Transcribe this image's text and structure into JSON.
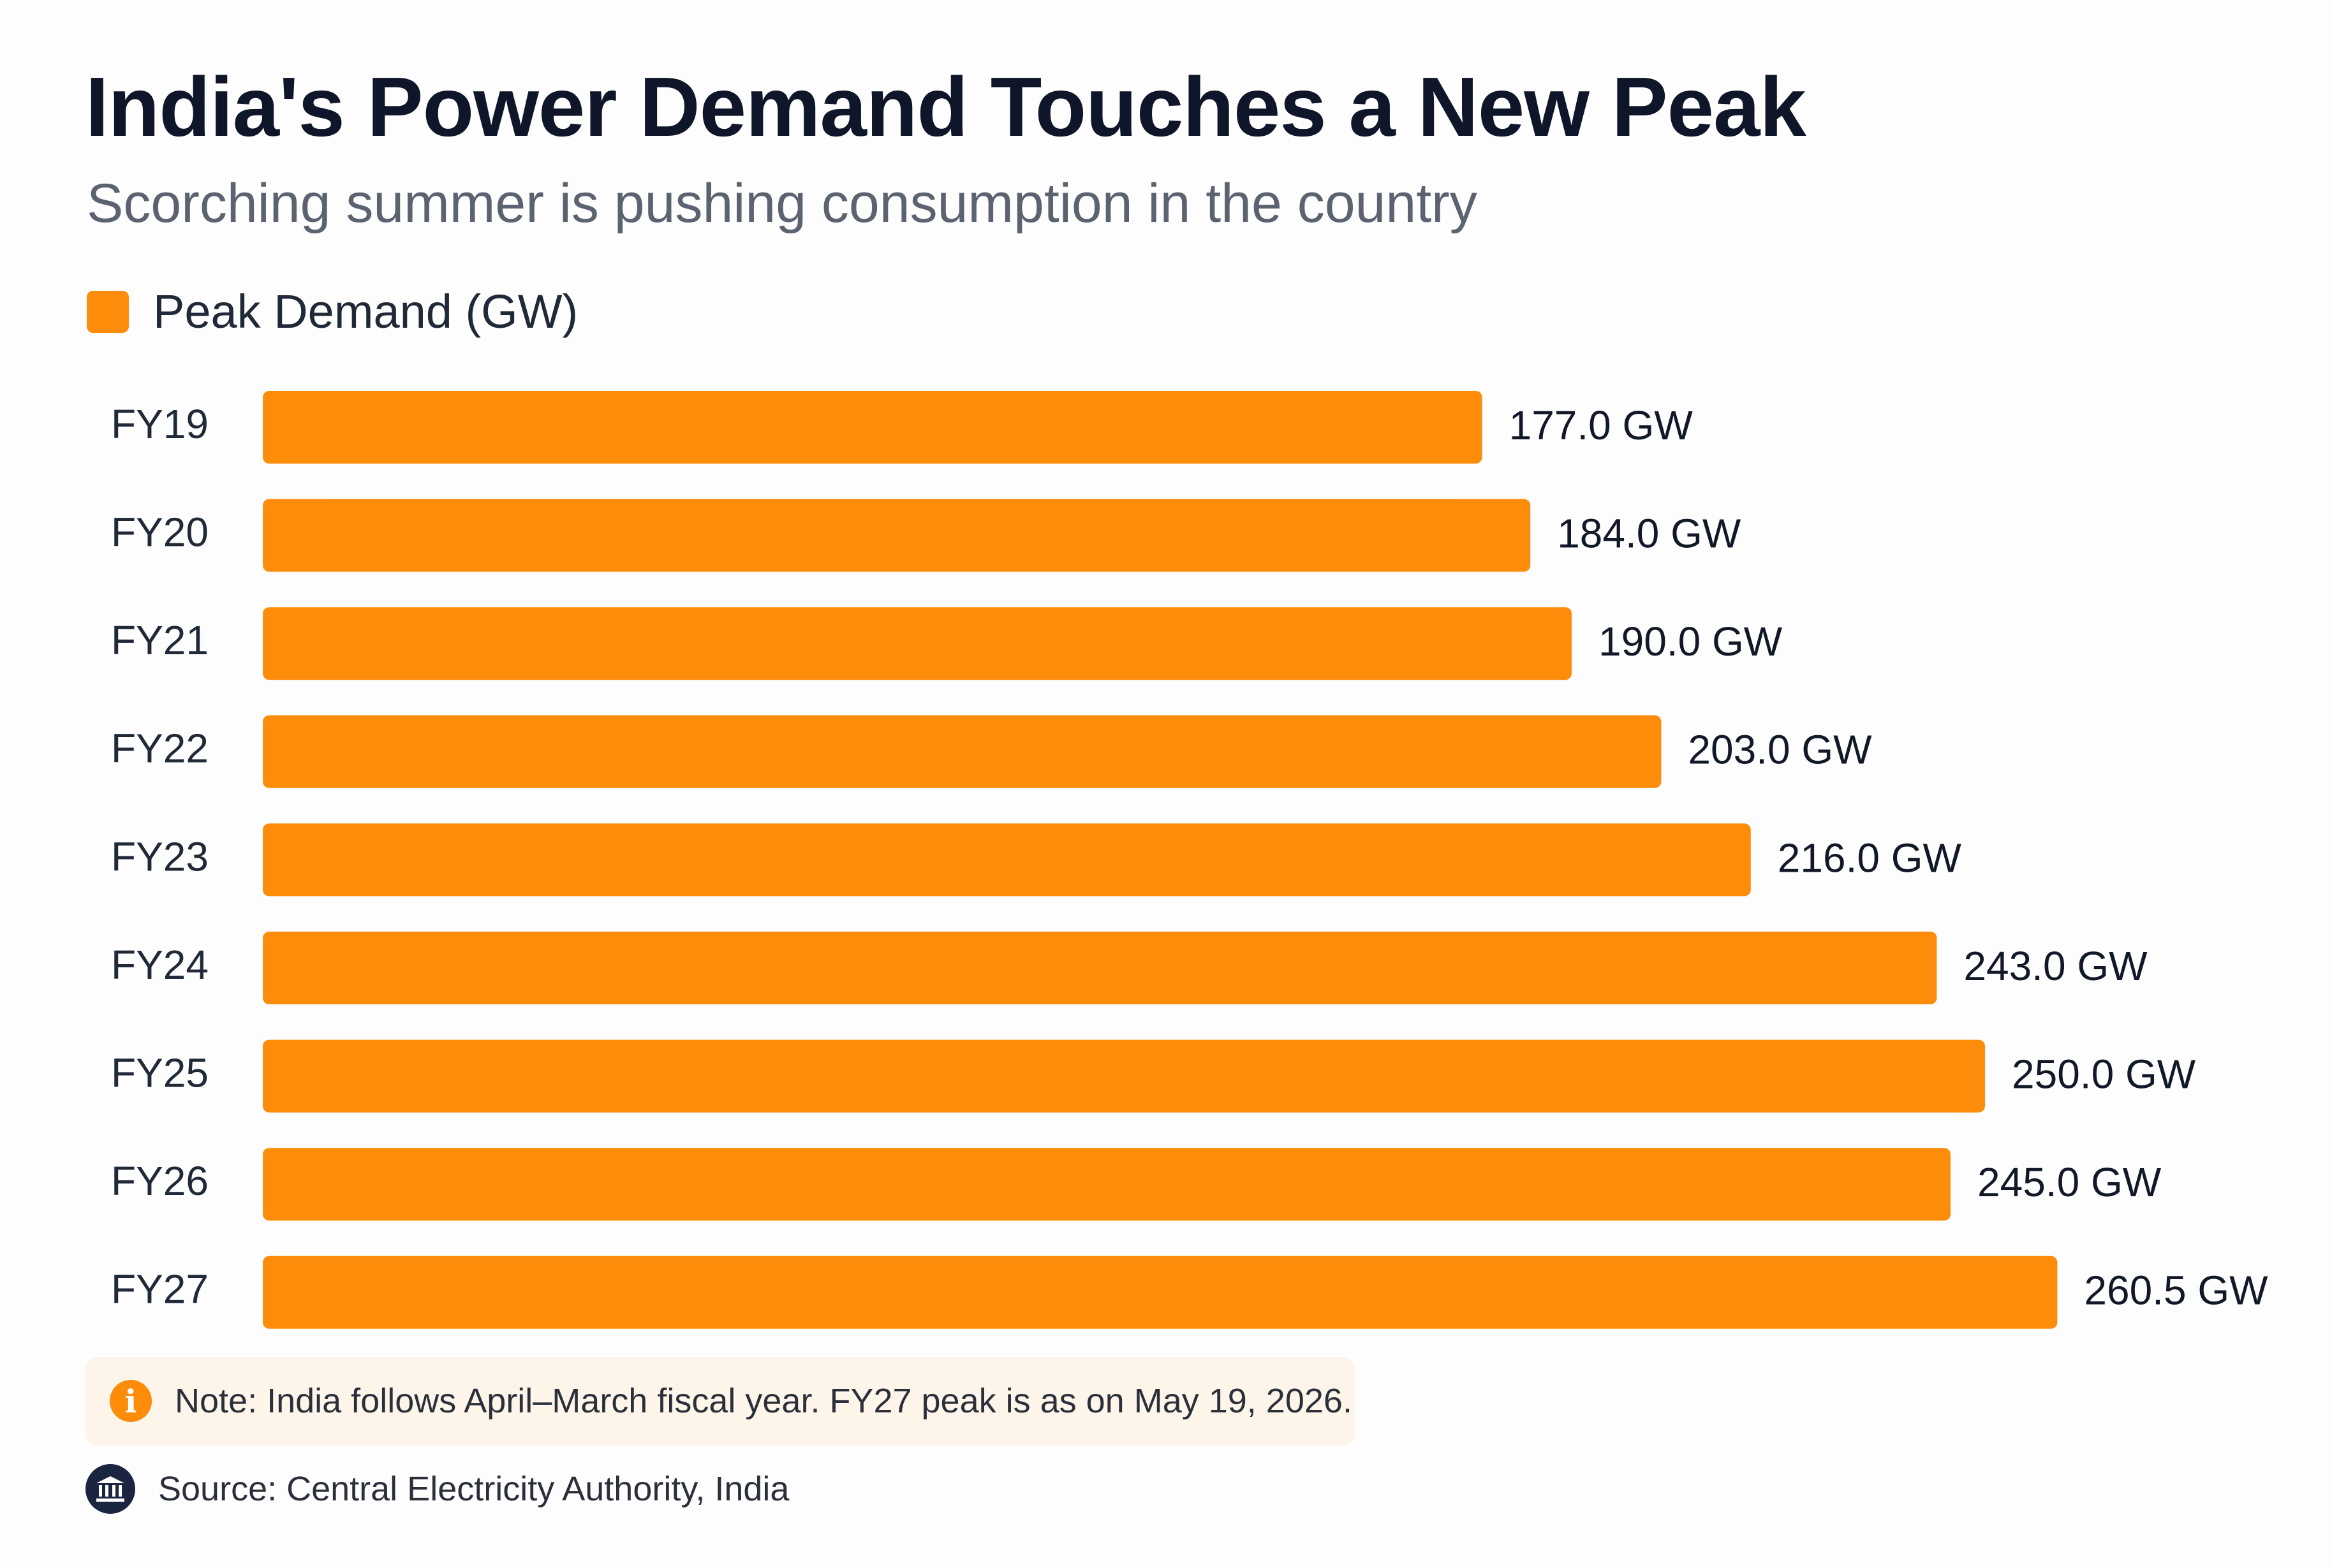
{
  "colors": {
    "bar": "#fd8c0b",
    "title": "#0f1629",
    "subtitle": "#5b6270",
    "note_bg": "#fdf5ea",
    "source_icon_bg": "#1a2540"
  },
  "icons": {
    "note": "info-icon",
    "source": "institution-building-icon"
  },
  "header": {
    "title": "India's Power Demand Touches a New Peak",
    "subtitle": "Scorching summer is pushing consumption in the country"
  },
  "legend": {
    "label": "Peak Demand (GW)"
  },
  "note": {
    "icon_glyph": "i",
    "text": "Note: India follows April–March fiscal year. FY27 peak is as on May 19, 2026."
  },
  "source": {
    "text": "Source: Central Electricity Authority, India"
  },
  "chart_data": {
    "type": "bar",
    "orientation": "horizontal",
    "categories": [
      "FY19",
      "FY20",
      "FY21",
      "FY22",
      "FY23",
      "FY24",
      "FY25",
      "FY26",
      "FY27"
    ],
    "series": [
      {
        "name": "Peak Demand (GW)",
        "values": [
          177.0,
          184.0,
          190.0,
          203.0,
          216.0,
          243.0,
          250.0,
          245.0,
          260.5
        ]
      }
    ],
    "data_labels": [
      "177.0 GW",
      "184.0 GW",
      "190.0 GW",
      "203.0 GW",
      "216.0 GW",
      "243.0 GW",
      "250.0 GW",
      "245.0 GW",
      "260.5 GW"
    ],
    "title": "India's Power Demand Touches a New Peak",
    "subtitle": "Scorching summer is pushing consumption in the country",
    "grid": false,
    "legend_position": "top-left"
  }
}
